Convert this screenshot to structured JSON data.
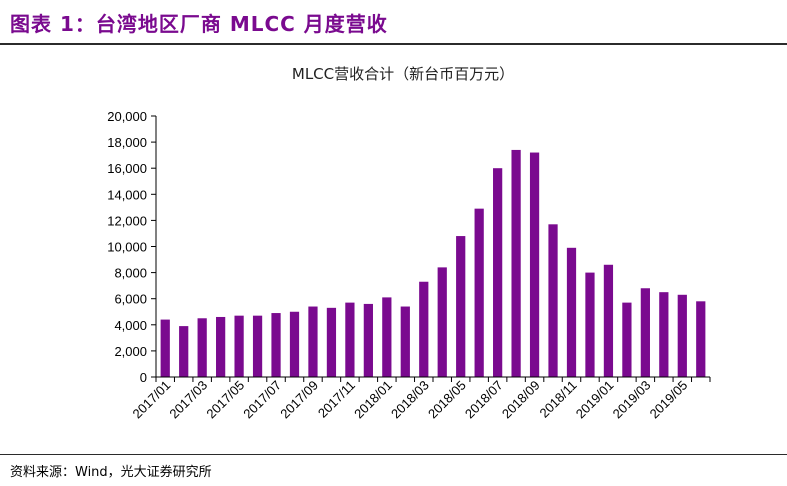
{
  "figure_title": "图表 1：台湾地区厂商 MLCC 月度营收",
  "source": "资料来源：Wind，光大证券研究所",
  "chart_data": {
    "type": "bar",
    "title": "MLCC营收合计（新台币百万元）",
    "bar_color": "#7A0A8F",
    "categories": [
      "2017/01",
      "2017/02",
      "2017/03",
      "2017/04",
      "2017/05",
      "2017/06",
      "2017/07",
      "2017/08",
      "2017/09",
      "2017/10",
      "2017/11",
      "2017/12",
      "2018/01",
      "2018/02",
      "2018/03",
      "2018/04",
      "2018/05",
      "2018/06",
      "2018/07",
      "2018/08",
      "2018/09",
      "2018/10",
      "2018/11",
      "2018/12",
      "2019/01",
      "2019/02",
      "2019/03",
      "2019/04",
      "2019/05",
      "2019/06"
    ],
    "x_tick_labels": [
      "2017/01",
      "",
      "2017/03",
      "",
      "2017/05",
      "",
      "2017/07",
      "",
      "2017/09",
      "",
      "2017/11",
      "",
      "2018/01",
      "",
      "2018/03",
      "",
      "2018/05",
      "",
      "2018/07",
      "",
      "2018/09",
      "",
      "2018/11",
      "",
      "2019/01",
      "",
      "2019/03",
      "",
      "2019/05",
      ""
    ],
    "values": [
      4400,
      3900,
      4500,
      4600,
      4700,
      4700,
      4900,
      5000,
      5400,
      5300,
      5700,
      5600,
      6100,
      5400,
      7300,
      8400,
      10800,
      12900,
      16000,
      17400,
      17200,
      11700,
      9900,
      8000,
      8600,
      5700,
      6800,
      6500,
      6300,
      5800
    ],
    "ylim": [
      0,
      20000
    ],
    "y_ticks": [
      "0",
      "2,000",
      "4,000",
      "6,000",
      "8,000",
      "10,000",
      "12,000",
      "14,000",
      "16,000",
      "18,000",
      "20,000"
    ],
    "legend": "none",
    "grid": false
  }
}
